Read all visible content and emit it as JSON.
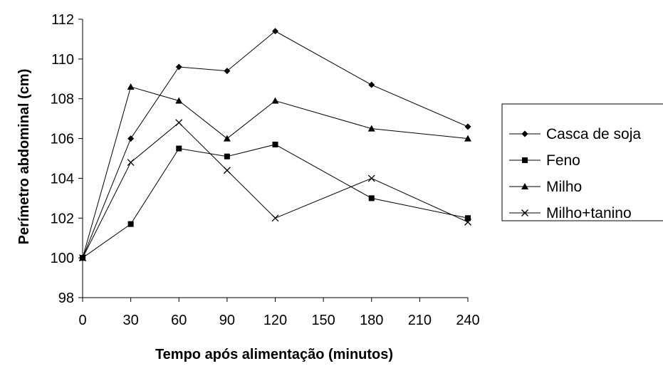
{
  "chart_data": {
    "type": "line",
    "xlabel": "Tempo após alimentação (minutos)",
    "ylabel": "Perímetro abdominal (cm)",
    "x_ticks": [
      0,
      30,
      60,
      90,
      120,
      150,
      180,
      210,
      240
    ],
    "y_ticks": [
      98,
      100,
      102,
      104,
      106,
      108,
      110,
      112
    ],
    "xlim": [
      0,
      240
    ],
    "ylim": [
      98,
      112
    ],
    "grid": false,
    "legend_position": "right",
    "series": [
      {
        "name": "Casca de soja",
        "marker": "diamond",
        "x": [
          0,
          30,
          60,
          90,
          120,
          180,
          240
        ],
        "y": [
          100,
          106,
          109.6,
          109.4,
          111.4,
          108.7,
          106.6
        ]
      },
      {
        "name": "Feno",
        "marker": "square",
        "x": [
          0,
          30,
          60,
          90,
          120,
          180,
          240
        ],
        "y": [
          100,
          101.7,
          105.5,
          105.1,
          105.7,
          103.0,
          102.0
        ]
      },
      {
        "name": "Milho",
        "marker": "triangle",
        "x": [
          0,
          30,
          60,
          90,
          120,
          180,
          240
        ],
        "y": [
          100,
          108.6,
          107.9,
          106.0,
          107.9,
          106.5,
          106.0
        ]
      },
      {
        "name": "Milho+tanino",
        "marker": "x",
        "x": [
          0,
          30,
          60,
          90,
          120,
          180,
          240
        ],
        "y": [
          100,
          104.8,
          106.8,
          104.4,
          102.0,
          104.0,
          101.8
        ]
      }
    ]
  }
}
